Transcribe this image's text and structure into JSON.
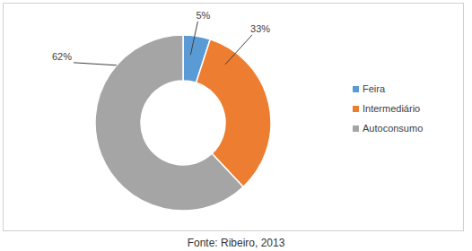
{
  "chart_data": {
    "type": "donut",
    "categories": [
      "Feira",
      "Intermediário",
      "Autoconsumo"
    ],
    "values": [
      5,
      33,
      62
    ],
    "value_labels": [
      "5%",
      "33%",
      "62%"
    ],
    "colors": [
      "#5b9bd5",
      "#ed7d31",
      "#a5a5a5"
    ],
    "legend": "right",
    "data_labels": true,
    "source": "Fonte: Ribeiro, 2013"
  }
}
